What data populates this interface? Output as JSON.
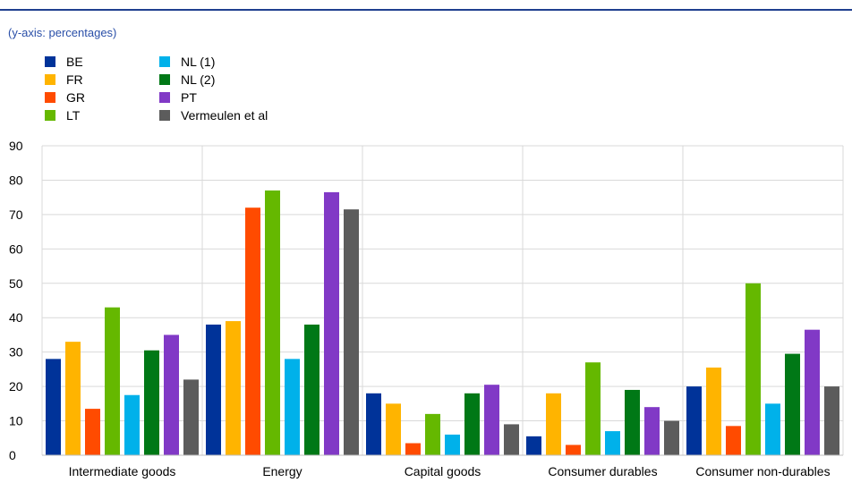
{
  "subtitle": "(y-axis: percentages)",
  "chart_data": {
    "type": "bar",
    "categories": [
      "Intermediate goods",
      "Energy",
      "Capital goods",
      "Consumer durables",
      "Consumer non-durables"
    ],
    "series": [
      {
        "name": "BE",
        "color": "#003399",
        "values": [
          28,
          38,
          18,
          5.5,
          20
        ]
      },
      {
        "name": "FR",
        "color": "#ffb400",
        "values": [
          33,
          39,
          15,
          18,
          25.5
        ]
      },
      {
        "name": "GR",
        "color": "#ff4b00",
        "values": [
          13.5,
          72,
          3.5,
          3,
          8.5
        ]
      },
      {
        "name": "LT",
        "color": "#65b800",
        "values": [
          43,
          77,
          12,
          27,
          50
        ]
      },
      {
        "name": "NL (1)",
        "color": "#00b1ea",
        "values": [
          17.5,
          28,
          6,
          7,
          15
        ]
      },
      {
        "name": "NL (2)",
        "color": "#007816",
        "values": [
          30.5,
          38,
          18,
          19,
          29.5
        ]
      },
      {
        "name": "PT",
        "color": "#8139c6",
        "values": [
          35,
          76.5,
          20.5,
          14,
          36.5
        ]
      },
      {
        "name": "Vermeulen et al",
        "color": "#5c5c5c",
        "values": [
          22,
          71.5,
          9,
          10,
          20
        ]
      }
    ],
    "ylim": [
      0,
      90
    ],
    "yticks": [
      "0",
      "10",
      "20",
      "30",
      "40",
      "50",
      "60",
      "70",
      "80",
      "90"
    ],
    "grid": true,
    "legend": "top-left"
  }
}
